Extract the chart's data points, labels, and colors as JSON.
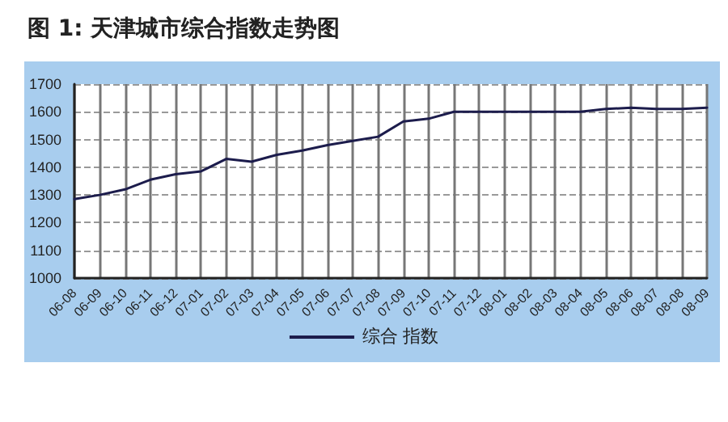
{
  "chart_data": {
    "type": "line",
    "title": "图 1: 天津城市综合指数走势图",
    "categories": [
      "06-08",
      "06-09",
      "06-10",
      "06-11",
      "06-12",
      "07-01",
      "07-02",
      "07-03",
      "07-04",
      "07-05",
      "07-06",
      "07-07",
      "07-08",
      "07-09",
      "07-10",
      "07-11",
      "07-12",
      "08-01",
      "08-02",
      "08-03",
      "08-04",
      "08-05",
      "08-06",
      "08-07",
      "08-08",
      "08-09"
    ],
    "series": [
      {
        "name": "综合 指数",
        "color": "#1c1c4c",
        "values": [
          1285,
          1300,
          1320,
          1355,
          1375,
          1385,
          1430,
          1420,
          1445,
          1460,
          1480,
          1495,
          1510,
          1565,
          1575,
          1600,
          1600,
          1600,
          1600,
          1600,
          1600,
          1610,
          1615,
          1610,
          1610,
          1615
        ]
      }
    ],
    "ylim": [
      1000,
      1700
    ],
    "yticks": [
      1000,
      1100,
      1200,
      1300,
      1400,
      1500,
      1600,
      1700
    ],
    "grid": true,
    "legend": "bottom",
    "marker": "none",
    "line_style": "solid"
  }
}
